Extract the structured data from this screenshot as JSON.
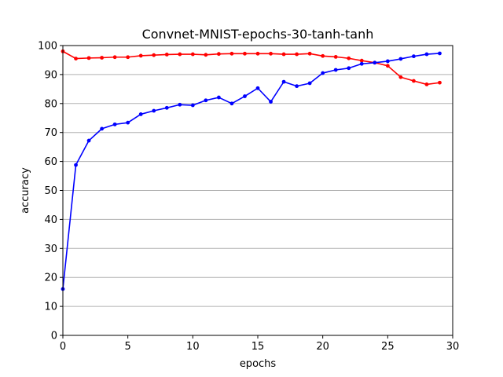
{
  "chart_data": {
    "type": "line",
    "title": "Convnet-MNIST-epochs-30-tanh-tanh",
    "xlabel": "epochs",
    "ylabel": "accuracy",
    "xlim": [
      0,
      30
    ],
    "ylim": [
      0,
      100
    ],
    "xticks": [
      0,
      5,
      10,
      15,
      20,
      25,
      30
    ],
    "yticks": [
      0,
      10,
      20,
      30,
      40,
      50,
      60,
      70,
      80,
      90,
      100
    ],
    "grid": "horizontal",
    "x": [
      0,
      1,
      2,
      3,
      4,
      5,
      6,
      7,
      8,
      9,
      10,
      11,
      12,
      13,
      14,
      15,
      16,
      17,
      18,
      19,
      20,
      21,
      22,
      23,
      24,
      25,
      26,
      27,
      28,
      29
    ],
    "series": [
      {
        "color": "#ff0000",
        "values": [
          98.0,
          95.5,
          95.7,
          95.8,
          96.0,
          96.0,
          96.5,
          96.7,
          96.9,
          97.0,
          97.0,
          96.8,
          97.1,
          97.2,
          97.2,
          97.2,
          97.2,
          97.0,
          97.0,
          97.2,
          96.4,
          96.1,
          95.6,
          94.8,
          94.1,
          93.0,
          89.1,
          87.8,
          86.6,
          87.2
        ]
      },
      {
        "color": "#0000ff",
        "values": [
          16.0,
          58.8,
          67.2,
          71.3,
          72.8,
          73.4,
          76.3,
          77.5,
          78.5,
          79.6,
          79.4,
          81.1,
          82.1,
          80.0,
          82.5,
          85.3,
          80.6,
          87.5,
          86.0,
          87.0,
          90.5,
          91.6,
          92.2,
          93.7,
          94.1,
          94.6,
          95.4,
          96.3,
          97.0,
          97.3
        ]
      }
    ]
  }
}
